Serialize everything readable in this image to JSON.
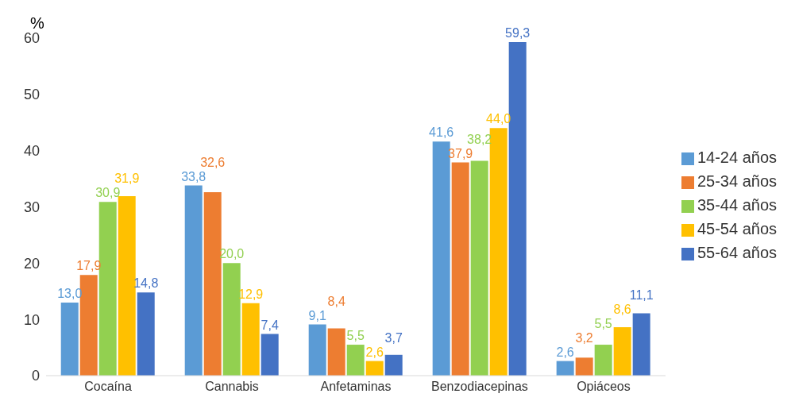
{
  "chart_data": {
    "type": "bar",
    "ylabel": "%",
    "categories": [
      "Cocaína",
      "Cannabis",
      "Anfetaminas",
      "Benzodiacepinas",
      "Opiáceos"
    ],
    "series": [
      {
        "name": "14-24 años",
        "color": "#5b9bd5",
        "values": [
          13.0,
          33.8,
          9.1,
          41.6,
          2.6
        ],
        "value_labels": [
          "13,0",
          "33,8",
          "9,1",
          "41,6",
          "2,6"
        ]
      },
      {
        "name": "25-34 años",
        "color": "#ed7d31",
        "values": [
          17.9,
          32.6,
          8.4,
          37.9,
          3.2
        ],
        "value_labels": [
          "17,9",
          "32,6",
          "8,4",
          "37,9",
          "3,2"
        ]
      },
      {
        "name": "35-44 años",
        "color": "#92d050",
        "values": [
          30.9,
          20.0,
          5.5,
          38.2,
          5.5
        ],
        "value_labels": [
          "30,9",
          "20,0",
          "5,5",
          "38,2",
          "5,5"
        ]
      },
      {
        "name": "45-54 años",
        "color": "#ffc000",
        "values": [
          31.9,
          12.9,
          2.6,
          44.0,
          8.6
        ],
        "value_labels": [
          "31,9",
          "12,9",
          "2,6",
          "44,0",
          "8,6"
        ]
      },
      {
        "name": "55-64 años",
        "color": "#4472c4",
        "values": [
          14.8,
          7.4,
          3.7,
          59.3,
          11.1
        ],
        "value_labels": [
          "14,8",
          "7,4",
          "3,7",
          "59,3",
          "11,1"
        ]
      }
    ],
    "ylim": [
      0,
      60
    ],
    "yticks": [
      0,
      10,
      20,
      30,
      40,
      50,
      60
    ],
    "grid": false,
    "legend": "right"
  }
}
